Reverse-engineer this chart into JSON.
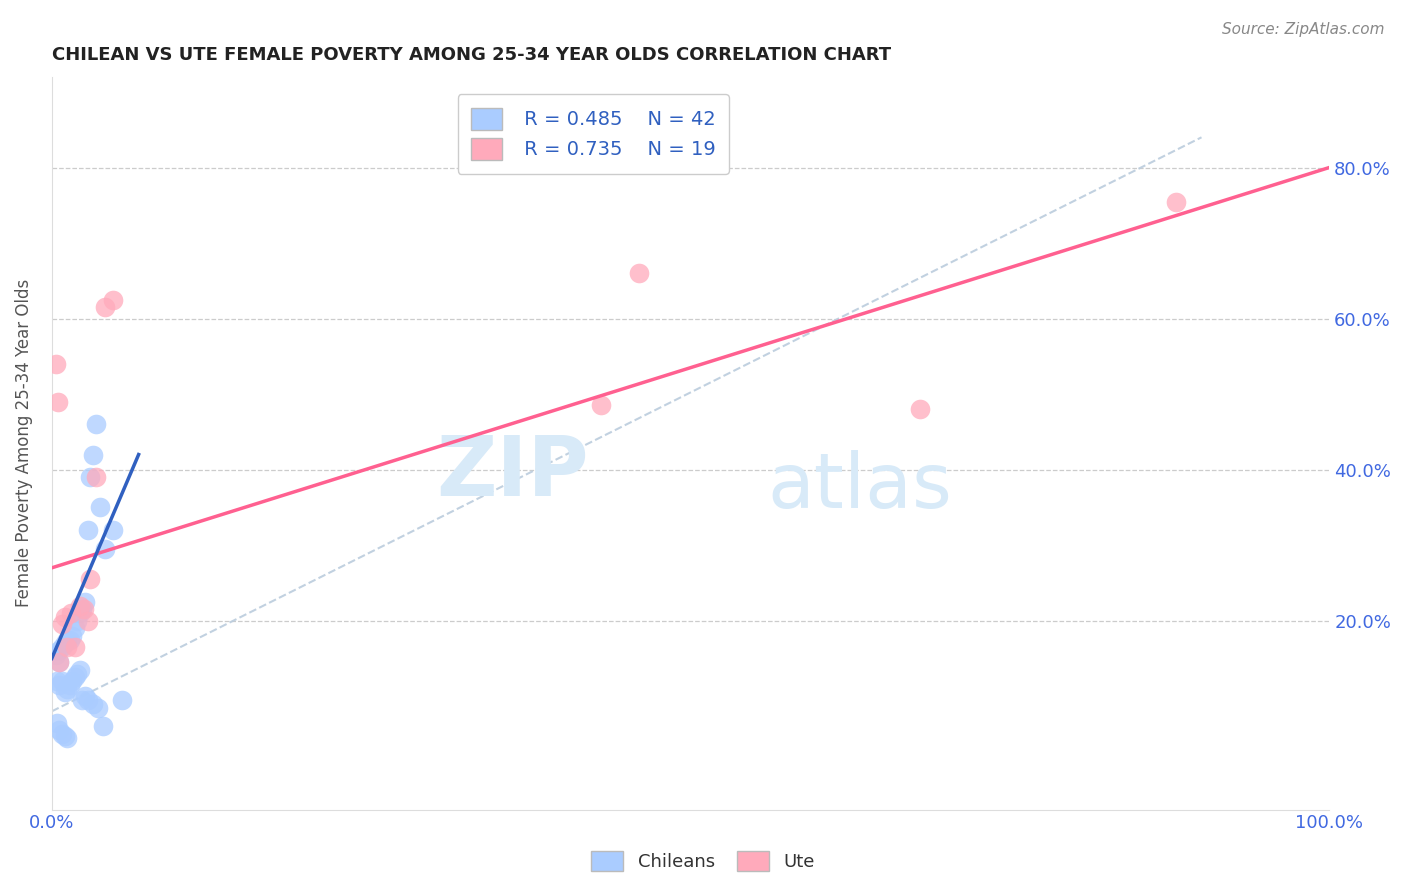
{
  "title": "CHILEAN VS UTE FEMALE POVERTY AMONG 25-34 YEAR OLDS CORRELATION CHART",
  "source": "Source: ZipAtlas.com",
  "ylabel": "Female Poverty Among 25-34 Year Olds",
  "xlim": [
    0.0,
    1.0
  ],
  "ylim": [
    -0.05,
    0.92
  ],
  "xticks": [
    0.0,
    0.2,
    0.4,
    0.6,
    0.8,
    1.0
  ],
  "xticklabels": [
    "0.0%",
    "",
    "",
    "",
    "",
    "100.0%"
  ],
  "yticks": [
    0.2,
    0.4,
    0.6,
    0.8
  ],
  "yticklabels": [
    "20.0%",
    "40.0%",
    "60.0%",
    "80.0%"
  ],
  "legend_r_chileans": "R = 0.485",
  "legend_n_chileans": "N = 42",
  "legend_r_ute": "R = 0.735",
  "legend_n_ute": "N = 19",
  "chilean_color": "#aaccff",
  "ute_color": "#ffaabb",
  "chilean_line_color": "#3060c0",
  "ute_line_color": "#ff6090",
  "dashed_line_color": "#bbccdd",
  "watermark_zip": "ZIP",
  "watermark_atlas": "atlas",
  "chilean_scatter_x": [
    0.003,
    0.005,
    0.006,
    0.008,
    0.01,
    0.012,
    0.014,
    0.016,
    0.018,
    0.02,
    0.022,
    0.024,
    0.026,
    0.028,
    0.03,
    0.032,
    0.035,
    0.038,
    0.042,
    0.048,
    0.004,
    0.006,
    0.008,
    0.01,
    0.012,
    0.014,
    0.016,
    0.018,
    0.02,
    0.022,
    0.024,
    0.026,
    0.028,
    0.032,
    0.036,
    0.04,
    0.004,
    0.006,
    0.008,
    0.01,
    0.012,
    0.055
  ],
  "chilean_scatter_y": [
    0.155,
    0.16,
    0.145,
    0.165,
    0.17,
    0.175,
    0.175,
    0.18,
    0.19,
    0.2,
    0.21,
    0.215,
    0.225,
    0.32,
    0.39,
    0.42,
    0.46,
    0.35,
    0.295,
    0.32,
    0.12,
    0.115,
    0.12,
    0.105,
    0.11,
    0.115,
    0.12,
    0.125,
    0.13,
    0.135,
    0.095,
    0.1,
    0.095,
    0.09,
    0.085,
    0.06,
    0.065,
    0.055,
    0.05,
    0.048,
    0.045,
    0.095
  ],
  "ute_scatter_x": [
    0.003,
    0.005,
    0.008,
    0.01,
    0.015,
    0.018,
    0.022,
    0.025,
    0.03,
    0.035,
    0.042,
    0.048,
    0.43,
    0.46,
    0.68,
    0.88,
    0.006,
    0.012,
    0.028
  ],
  "ute_scatter_y": [
    0.54,
    0.49,
    0.195,
    0.205,
    0.21,
    0.165,
    0.22,
    0.215,
    0.255,
    0.39,
    0.615,
    0.625,
    0.485,
    0.66,
    0.48,
    0.755,
    0.145,
    0.165,
    0.2
  ],
  "chilean_regline_x": [
    0.0,
    0.068
  ],
  "chilean_regline_y": [
    0.15,
    0.42
  ],
  "ute_regline_x": [
    0.0,
    1.0
  ],
  "ute_regline_y": [
    0.27,
    0.8
  ],
  "dashed_line_x": [
    0.0,
    0.9
  ],
  "dashed_line_y": [
    0.08,
    0.84
  ]
}
